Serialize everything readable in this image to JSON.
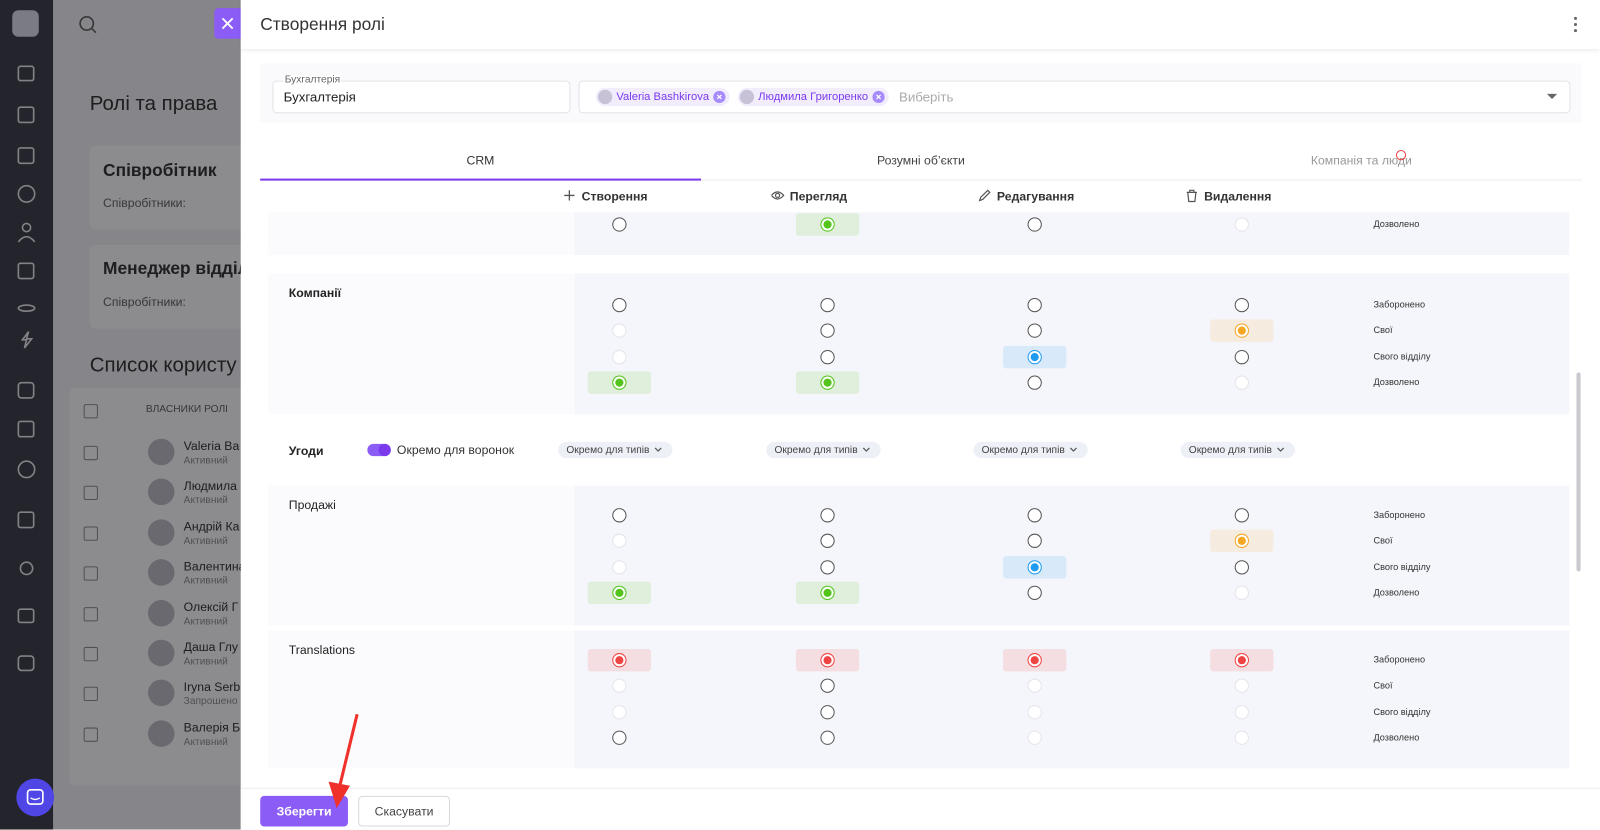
{
  "background": {
    "page_title": "Ролі та права",
    "cards": [
      {
        "title": "Співробітник",
        "subtitle": "Співробітники:"
      },
      {
        "title": "Менеджер відділ",
        "subtitle": "Співробітники:"
      }
    ],
    "list_title": "Список користу",
    "table_header": "ВЛАСНИКИ РОЛІ",
    "users": [
      {
        "name": "Valeria Ba",
        "status": "Активний"
      },
      {
        "name": "Людмила",
        "status": "Активний"
      },
      {
        "name": "Андрій Ка",
        "status": "Активний"
      },
      {
        "name": "Валентина",
        "status": "Активний"
      },
      {
        "name": "Олексій Г",
        "status": "Активний"
      },
      {
        "name": "Даша Глу",
        "status": "Активний"
      },
      {
        "name": "Iryna Serb",
        "status": "Запрошено"
      },
      {
        "name": "Валерія Б",
        "status": "Активний"
      }
    ]
  },
  "drawer": {
    "title": "Створення ролі",
    "name_field": {
      "label": "Бухгалтерія",
      "value": "Бухгалтерія"
    },
    "members": [
      "Valeria Bashkirova",
      "Людмила Григоренко"
    ],
    "members_placeholder": "Виберіть",
    "tabs": [
      "CRM",
      "Розумні об’єкти",
      "Компанія та люди"
    ],
    "active_tab": 0,
    "columns": [
      "Створення",
      "Перегляд",
      "Редагування",
      "Видалення"
    ],
    "sections": [
      {
        "rows": [
          {
            "label": "Дозволено",
            "color": "#52c41a",
            "states": [
              "off",
              "on",
              "off",
              "disabled"
            ]
          }
        ]
      },
      {
        "title": "Компанії",
        "bold": true,
        "rows": [
          {
            "label": "Заборонено",
            "color": "#ef4444",
            "states": [
              "off",
              "off",
              "off",
              "off"
            ]
          },
          {
            "label": "Свої",
            "color": "#f5a623",
            "states": [
              "disabled",
              "off",
              "off",
              "on"
            ]
          },
          {
            "label": "Свого відділу",
            "color": "#1e9bf0",
            "states": [
              "disabled",
              "off",
              "on",
              "off"
            ]
          },
          {
            "label": "Дозволено",
            "color": "#52c41a",
            "states": [
              "on",
              "on",
              "off",
              "disabled"
            ]
          }
        ]
      },
      {
        "title": "Угоди",
        "bold": true,
        "toggle": {
          "label": "Окремо для воронок",
          "on": true
        },
        "dropdowns": [
          "Окремо для типів",
          "Окремо для типів",
          "Окремо для типів",
          "Окремо для типів"
        ]
      },
      {
        "title": "Продажі",
        "bold": false,
        "rows": [
          {
            "label": "Заборонено",
            "color": "#ef4444",
            "states": [
              "off",
              "off",
              "off",
              "off"
            ]
          },
          {
            "label": "Свої",
            "color": "#f5a623",
            "states": [
              "disabled",
              "off",
              "off",
              "on"
            ]
          },
          {
            "label": "Свого відділу",
            "color": "#1e9bf0",
            "states": [
              "disabled",
              "off",
              "on",
              "off"
            ]
          },
          {
            "label": "Дозволено",
            "color": "#52c41a",
            "states": [
              "on",
              "on",
              "off",
              "disabled"
            ]
          }
        ]
      },
      {
        "title": "Translations",
        "bold": false,
        "rows": [
          {
            "label": "Заборонено",
            "color": "#ef4444",
            "states": [
              "on",
              "on",
              "on",
              "on"
            ]
          },
          {
            "label": "Свої",
            "color": "#f5a623",
            "states": [
              "disabled",
              "off",
              "disabled",
              "disabled"
            ]
          },
          {
            "label": "Свого відділу",
            "color": "#1e9bf0",
            "states": [
              "disabled",
              "off",
              "disabled",
              "disabled"
            ]
          },
          {
            "label": "Дозволено",
            "color": "#52c41a",
            "states": [
              "off",
              "off",
              "disabled",
              "disabled"
            ]
          }
        ]
      }
    ],
    "buttons": {
      "save": "Зберегти",
      "cancel": "Скасувати"
    }
  }
}
